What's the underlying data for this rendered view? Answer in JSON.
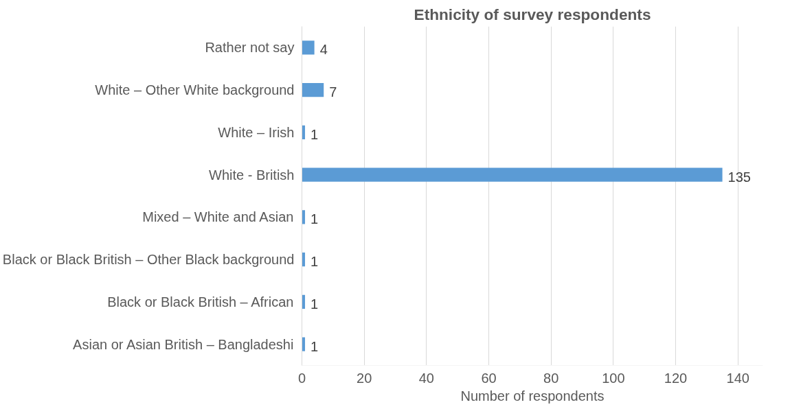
{
  "chart_data": {
    "type": "bar",
    "orientation": "horizontal",
    "title": "Ethnicity of survey respondents",
    "xlabel": "Number of respondents",
    "categories": [
      "Rather not say",
      "White – Other White background",
      "White – Irish",
      "White - British",
      "Mixed – White and Asian",
      "Black or Black British – Other Black background",
      "Black or Black British – African",
      "Asian or Asian British – Bangladeshi"
    ],
    "values": [
      4,
      7,
      1,
      135,
      1,
      1,
      1,
      1
    ],
    "color": "#5b9bd5",
    "xlim": [
      0,
      148
    ],
    "xticks": [
      0,
      20,
      40,
      60,
      80,
      100,
      120,
      140
    ],
    "grid": "x",
    "data_labels": true
  }
}
